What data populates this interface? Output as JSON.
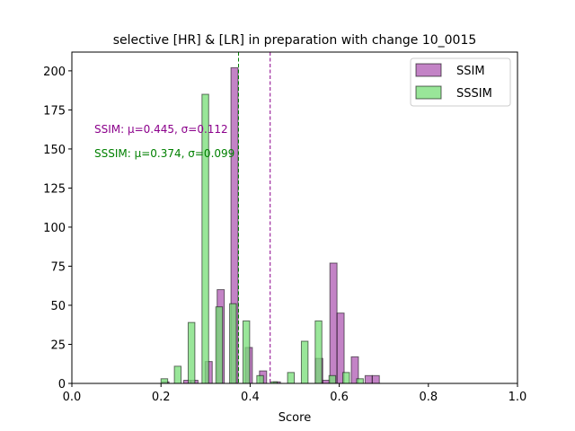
{
  "chart_data": {
    "type": "bar",
    "title": "selective [HR] & [LR] in preparation with change 10_0015",
    "xlabel": "Score",
    "ylabel": "",
    "xlim": [
      0.0,
      1.0
    ],
    "ylim": [
      0,
      212
    ],
    "xticks": [
      "0.0",
      "0.2",
      "0.4",
      "0.6",
      "0.8",
      "1.0"
    ],
    "yticks": [
      "0",
      "25",
      "50",
      "75",
      "100",
      "125",
      "150",
      "175",
      "200"
    ],
    "grid": false,
    "legend_position": "upper right",
    "series": [
      {
        "name": "SSIM",
        "color": "#9b30a0",
        "bins": [
          {
            "x0": 0.202,
            "x1": 0.218,
            "count": 1
          },
          {
            "x0": 0.251,
            "x1": 0.267,
            "count": 2
          },
          {
            "x0": 0.267,
            "x1": 0.283,
            "count": 2
          },
          {
            "x0": 0.299,
            "x1": 0.315,
            "count": 14
          },
          {
            "x0": 0.326,
            "x1": 0.342,
            "count": 60
          },
          {
            "x0": 0.357,
            "x1": 0.373,
            "count": 202
          },
          {
            "x0": 0.389,
            "x1": 0.405,
            "count": 23
          },
          {
            "x0": 0.421,
            "x1": 0.437,
            "count": 8
          },
          {
            "x0": 0.452,
            "x1": 0.468,
            "count": 1
          },
          {
            "x0": 0.547,
            "x1": 0.563,
            "count": 16
          },
          {
            "x0": 0.563,
            "x1": 0.579,
            "count": 2
          },
          {
            "x0": 0.579,
            "x1": 0.595,
            "count": 77
          },
          {
            "x0": 0.595,
            "x1": 0.611,
            "count": 45
          },
          {
            "x0": 0.627,
            "x1": 0.643,
            "count": 17
          },
          {
            "x0": 0.658,
            "x1": 0.674,
            "count": 5
          },
          {
            "x0": 0.674,
            "x1": 0.69,
            "count": 5
          }
        ]
      },
      {
        "name": "SSSIM",
        "color": "#77dd77",
        "bins": [
          {
            "x0": 0.2,
            "x1": 0.215,
            "count": 3
          },
          {
            "x0": 0.23,
            "x1": 0.245,
            "count": 11
          },
          {
            "x0": 0.261,
            "x1": 0.276,
            "count": 39
          },
          {
            "x0": 0.292,
            "x1": 0.307,
            "count": 185
          },
          {
            "x0": 0.323,
            "x1": 0.338,
            "count": 49
          },
          {
            "x0": 0.354,
            "x1": 0.369,
            "count": 51
          },
          {
            "x0": 0.384,
            "x1": 0.399,
            "count": 40
          },
          {
            "x0": 0.415,
            "x1": 0.43,
            "count": 5
          },
          {
            "x0": 0.446,
            "x1": 0.461,
            "count": 1
          },
          {
            "x0": 0.484,
            "x1": 0.499,
            "count": 7
          },
          {
            "x0": 0.515,
            "x1": 0.53,
            "count": 27
          },
          {
            "x0": 0.546,
            "x1": 0.561,
            "count": 40
          },
          {
            "x0": 0.577,
            "x1": 0.592,
            "count": 5
          },
          {
            "x0": 0.608,
            "x1": 0.623,
            "count": 7
          },
          {
            "x0": 0.639,
            "x1": 0.654,
            "count": 3
          }
        ]
      }
    ],
    "mean_lines": [
      {
        "series": "SSIM",
        "value": 0.445,
        "color": "#8b008b"
      },
      {
        "series": "SSSIM",
        "value": 0.374,
        "color": "#008000"
      }
    ],
    "annotations": [
      {
        "text": "SSIM: μ=0.445, σ=0.112",
        "color": "#8b008b"
      },
      {
        "text": "SSSIM: μ=0.374, σ=0.099",
        "color": "#008000"
      }
    ]
  }
}
